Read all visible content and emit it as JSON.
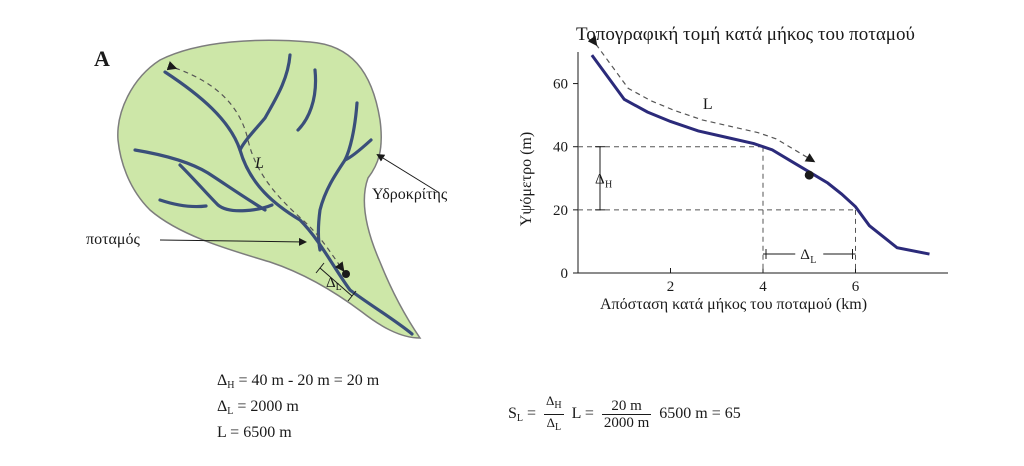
{
  "panel_label": "A",
  "watershed": {
    "divide_label": "Υδροκρίτης",
    "river_label": "ποταμός",
    "length_label": "L",
    "delta_l_label": "Δ",
    "delta_l_sub": "L"
  },
  "chart_data": {
    "type": "line",
    "title": "Τοπογραφική τομή κατά μήκος του ποταμού",
    "xlabel": "Απόσταση κατά μήκος του ποταμού (km)",
    "ylabel": "Υψόμετρο (m)",
    "xlim": [
      0,
      8
    ],
    "ylim": [
      0,
      70
    ],
    "xticks": [
      2,
      4,
      6
    ],
    "yticks": [
      0,
      20,
      40,
      60
    ],
    "x": [
      0.3,
      0.7,
      1.0,
      1.5,
      2.0,
      2.6,
      3.2,
      3.8,
      4.2,
      4.6,
      5.0,
      5.4,
      5.7,
      6.0,
      6.3,
      6.9,
      7.6
    ],
    "y": [
      69,
      61,
      55,
      51,
      48,
      45,
      43,
      41,
      39,
      35.5,
      32,
      28.5,
      25,
      21,
      15,
      8,
      6
    ],
    "marker_point": {
      "x": 5.0,
      "y": 31
    },
    "annotations": {
      "length_label": "L",
      "delta_h_label": "Δ",
      "delta_h_sub": "H",
      "delta_l_label": "Δ",
      "delta_l_sub": "L"
    },
    "grid": false
  },
  "equations": {
    "dh_sym": "Δ",
    "dh_sub": "H",
    "dh_rest": " = 40 m - 20 m = 20 m",
    "dl_sym": "Δ",
    "dl_sub": "L",
    "dl_rest": " = 2000 m",
    "l_text": "L = 6500 m",
    "sl_sym": "S",
    "sl_sub": "L",
    "sl_eq": " = ",
    "frac1_num_sym": "Δ",
    "frac1_num_sub": "H",
    "frac1_den_sym": "Δ",
    "frac1_den_sub": "L",
    "sl_mid": " L  = ",
    "frac2_num": "20 m",
    "frac2_den": "2000 m",
    "sl_tail": " 6500 m = 65"
  }
}
